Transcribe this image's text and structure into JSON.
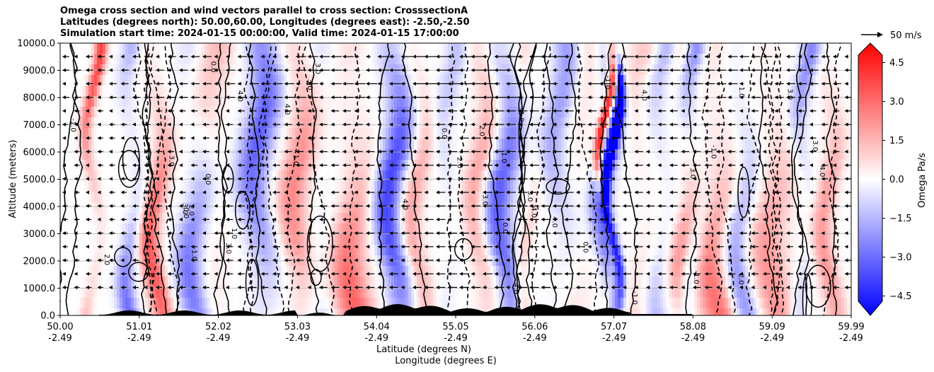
{
  "chart_data": {
    "type": "heatmap",
    "title_lines": [
      "Omega cross section and wind vectors parallel to cross section: CrosssectionA",
      "Latitudes (degrees north): 50.00,60.00, Longitudes (degrees east): -2.50,-2.50",
      "Simulation start time: 2024-01-15 00:00:00, Valid time: 2024-01-15 17:00:00"
    ],
    "ylabel": "Altitude (meters)",
    "xlabel_lines": [
      "Latitude (degrees N)",
      "Longitude (degrees E)"
    ],
    "ylim": [
      0,
      10000
    ],
    "y_ticks": [
      "0.0",
      "1000.0",
      "2000.0",
      "3000.0",
      "4000.0",
      "5000.0",
      "6000.0",
      "7000.0",
      "8000.0",
      "9000.0",
      "10000.0"
    ],
    "x_ticks": [
      {
        "lat": "50.00",
        "lon": "-2.49"
      },
      {
        "lat": "51.01",
        "lon": "-2.49"
      },
      {
        "lat": "52.02",
        "lon": "-2.49"
      },
      {
        "lat": "53.03",
        "lon": "-2.49"
      },
      {
        "lat": "54.04",
        "lon": "-2.49"
      },
      {
        "lat": "55.05",
        "lon": "-2.49"
      },
      {
        "lat": "56.06",
        "lon": "-2.49"
      },
      {
        "lat": "57.07",
        "lon": "-2.49"
      },
      {
        "lat": "58.08",
        "lon": "-2.49"
      },
      {
        "lat": "59.09",
        "lon": "-2.49"
      },
      {
        "lat": "59.99",
        "lon": "-2.49"
      }
    ],
    "grid": "horizontal lines at y ticks",
    "colorbar": {
      "label": "Omega Pa/s",
      "range": [
        -5.25,
        5.25
      ],
      "ticks": [
        "4.5",
        "3.0",
        "1.5",
        "0.0",
        "−1.5",
        "−3.0",
        "−4.5"
      ],
      "cmap": "bwr",
      "extend": "both"
    },
    "vector_key": {
      "label": "50 m/s"
    },
    "contour_labels": [
      "-1.0",
      "0.0",
      "1.0",
      "2.0",
      "3.0",
      "4.0"
    ]
  },
  "colors": {
    "negative": "#0000ff",
    "zero": "#ffffff",
    "positive": "#ff0000"
  }
}
